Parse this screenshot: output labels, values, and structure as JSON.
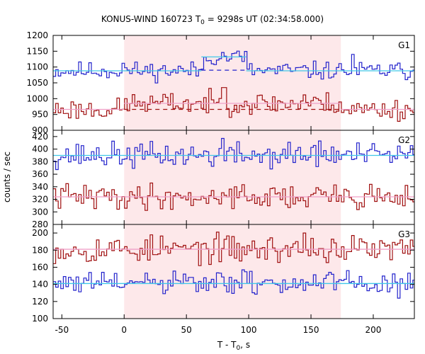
{
  "chart_data": {
    "type": "line",
    "title": "KONUS-WIND 160723 T",
    "title_sub": "0",
    "title_rest": " = 9298s UT (02:34:58.000)",
    "xlabel": "T - T",
    "xlabel_sub": "0",
    "xlabel_rest": ", s",
    "ylabel": "counts / sec",
    "xlim": [
      -57,
      233
    ],
    "x_ticks": [
      -50,
      0,
      50,
      100,
      150,
      200
    ],
    "shaded_interval": [
      0,
      174
    ],
    "colors": {
      "blue": "#2222cc",
      "red": "#a01010",
      "cyan": "#40c8e8",
      "pink": "#f0a0c8",
      "shade": "#fde8ea"
    },
    "panels": [
      {
        "label": "G1",
        "ylim": [
          900,
          1200
        ],
        "y_ticks": [
          900,
          950,
          1000,
          1050,
          1100,
          1150,
          1200
        ],
        "series": [
          {
            "color": "blue",
            "background": 1088,
            "fit": [
              [
                -57,
                62,
                1088
              ],
              [
                62,
                98,
                1132
              ],
              [
                98,
                233,
                1088
              ]
            ],
            "bump": {
              "start": 62,
              "end": 98,
              "level": 1132
            },
            "baseline_dash": {
              "start": 62,
              "end": 98,
              "level": 1090
            },
            "seed": 11,
            "noise": 14,
            "spikes": [
              [
                183,
                1140
              ],
              [
                -1,
                1112
              ]
            ]
          },
          {
            "color": "red",
            "background": 966,
            "fit": [
              [
                -57,
                0,
                966
              ],
              [
                0,
                174,
                985
              ],
              [
                174,
                233,
                966
              ]
            ],
            "bump": {
              "start": 0,
              "end": 174,
              "level": 985
            },
            "baseline_dash": {
              "start": 0,
              "end": 174,
              "level": 966
            },
            "seed": 23,
            "noise": 17,
            "spikes": [
              [
                79,
                1035
              ],
              [
                143,
                1012
              ]
            ]
          }
        ]
      },
      {
        "label": "G2",
        "ylim": [
          280,
          430
        ],
        "y_ticks": [
          280,
          300,
          320,
          340,
          360,
          380,
          400,
          420
        ],
        "series": [
          {
            "color": "blue",
            "background": 390,
            "fit": [
              [
                -57,
                233,
                390
              ]
            ],
            "seed": 37,
            "noise": 10,
            "spikes": [
              [
                78,
                417
              ],
              [
                156,
                413
              ]
            ]
          },
          {
            "color": "red",
            "background": 324,
            "fit": [
              [
                -57,
                233,
                324
              ]
            ],
            "seed": 41,
            "noise": 10,
            "spikes": [
              [
                177,
                336
              ],
              [
                88,
                340
              ]
            ]
          }
        ]
      },
      {
        "label": "G3",
        "ylim": [
          100,
          210
        ],
        "y_ticks": [
          100,
          120,
          140,
          160,
          180,
          200
        ],
        "series": [
          {
            "color": "red",
            "background": 181,
            "fit": [
              [
                -57,
                233,
                181
              ]
            ],
            "seed": 53,
            "noise": 8,
            "spikes": [
              [
                143,
                200
              ]
            ]
          },
          {
            "color": "blue",
            "background": 141,
            "fit": [
              [
                -57,
                233,
                141
              ]
            ],
            "seed": 61,
            "noise": 7,
            "spikes": [
              [
                95,
                157
              ]
            ]
          }
        ]
      }
    ]
  }
}
